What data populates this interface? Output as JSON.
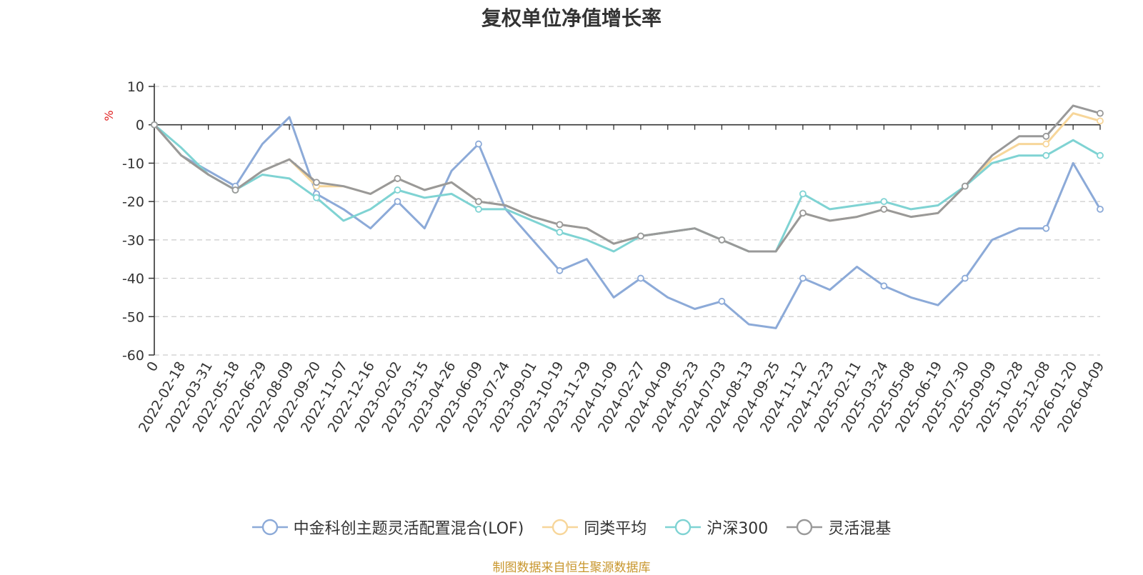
{
  "chart_data": {
    "type": "line",
    "title": "复权单位净值增长率",
    "ylabel": "%",
    "xlabel": "",
    "ylim": [
      -60,
      10
    ],
    "yticks": [
      10,
      0,
      -10,
      -20,
      -30,
      -40,
      -50,
      -60
    ],
    "grid": true,
    "legend_position": "bottom",
    "x_start_label": "0",
    "x": [
      "2022-02-18",
      "2022-03-31",
      "2022-05-18",
      "2022-06-29",
      "2022-08-09",
      "2022-09-20",
      "2022-11-07",
      "2022-12-16",
      "2023-02-02",
      "2023-03-15",
      "2023-04-26",
      "2023-06-09",
      "2023-07-24",
      "2023-09-01",
      "2023-10-19",
      "2023-11-29",
      "2024-01-09",
      "2024-02-27",
      "2024-04-09",
      "2024-05-23",
      "2024-07-03",
      "2024-08-13",
      "2024-09-25",
      "2024-11-12",
      "2024-12-23",
      "2025-02-11",
      "2025-03-24",
      "2025-05-08",
      "2025-06-19",
      "2025-07-30",
      "2025-09-09",
      "2025-10-28",
      "2025-12-08",
      "2026-01-20",
      "2026-04-09"
    ],
    "series": [
      {
        "name": "中金科创主题灵活配置混合(LOF)",
        "color": "#8caad8",
        "values": [
          -8,
          -12,
          -16,
          -5,
          2,
          -18,
          -22,
          -27,
          -20,
          -27,
          -12,
          -5,
          -22,
          -30,
          -38,
          -35,
          -45,
          -40,
          -45,
          -48,
          -46,
          -52,
          -53,
          -40,
          -43,
          -37,
          -42,
          -45,
          -47,
          -40,
          -30,
          -27,
          -27,
          -10,
          -22
        ]
      },
      {
        "name": "同类平均",
        "color": "#f7d69a",
        "values": [
          -8,
          -13,
          -17,
          -12,
          -9,
          -16,
          -16,
          -18,
          -14,
          -17,
          -15,
          -20,
          -21,
          -24,
          -26,
          -27,
          -31,
          -29,
          -28,
          -27,
          -30,
          -33,
          -33,
          -23,
          -25,
          -24,
          -22,
          -24,
          -23,
          -16,
          -9,
          -5,
          -5,
          3,
          1
        ]
      },
      {
        "name": "沪深300",
        "color": "#7fd3d3",
        "values": [
          -6,
          -13,
          -17,
          -13,
          -14,
          -19,
          -25,
          -22,
          -17,
          -19,
          -18,
          -22,
          -22,
          -25,
          -28,
          -30,
          -33,
          -29,
          -28,
          -27,
          -30,
          -33,
          -33,
          -18,
          -22,
          -21,
          -20,
          -22,
          -21,
          -16,
          -10,
          -8,
          -8,
          -4,
          -8
        ]
      },
      {
        "name": "灵活混基",
        "color": "#999999",
        "values": [
          -8,
          -13,
          -17,
          -12,
          -9,
          -15,
          -16,
          -18,
          -14,
          -17,
          -15,
          -20,
          -21,
          -24,
          -26,
          -27,
          -31,
          -29,
          -28,
          -27,
          -30,
          -33,
          -33,
          -23,
          -25,
          -24,
          -22,
          -24,
          -23,
          -16,
          -8,
          -3,
          -3,
          5,
          3
        ]
      }
    ]
  },
  "source_note": "制图数据来自恒生聚源数据库"
}
